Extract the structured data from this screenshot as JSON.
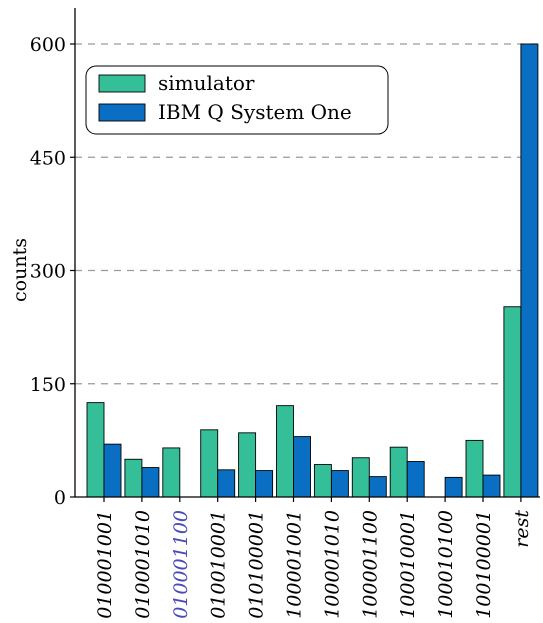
{
  "chart_data": {
    "type": "bar",
    "ylabel": "counts",
    "xlabel": "",
    "title": "",
    "ylim": [
      0,
      650
    ],
    "yticks": [
      0,
      150,
      300,
      450,
      600
    ],
    "grid": "horizontal-dashed",
    "legend_position": "top-left",
    "categories": [
      "010001001",
      "010001010",
      "010001100",
      "010010001",
      "010100001",
      "100001001",
      "100001010",
      "100001100",
      "100010001",
      "100010100",
      "100100001",
      "rest"
    ],
    "highlighted_categories": [
      "010001100"
    ],
    "series": [
      {
        "name": "simulator",
        "color": "#35bf99",
        "values": [
          125,
          50,
          65,
          89,
          85,
          121,
          43,
          52,
          66,
          0,
          75,
          252
        ]
      },
      {
        "name": "IBM Q System One",
        "color": "#0a6fc2",
        "values": [
          70,
          39,
          0,
          36,
          35,
          80,
          35,
          27,
          47,
          26,
          29,
          600
        ]
      }
    ],
    "colors": {
      "axis": "#000000",
      "grid": "#9a9a9a",
      "highlight_label": "#4a4ab8",
      "label": "#000000"
    }
  }
}
